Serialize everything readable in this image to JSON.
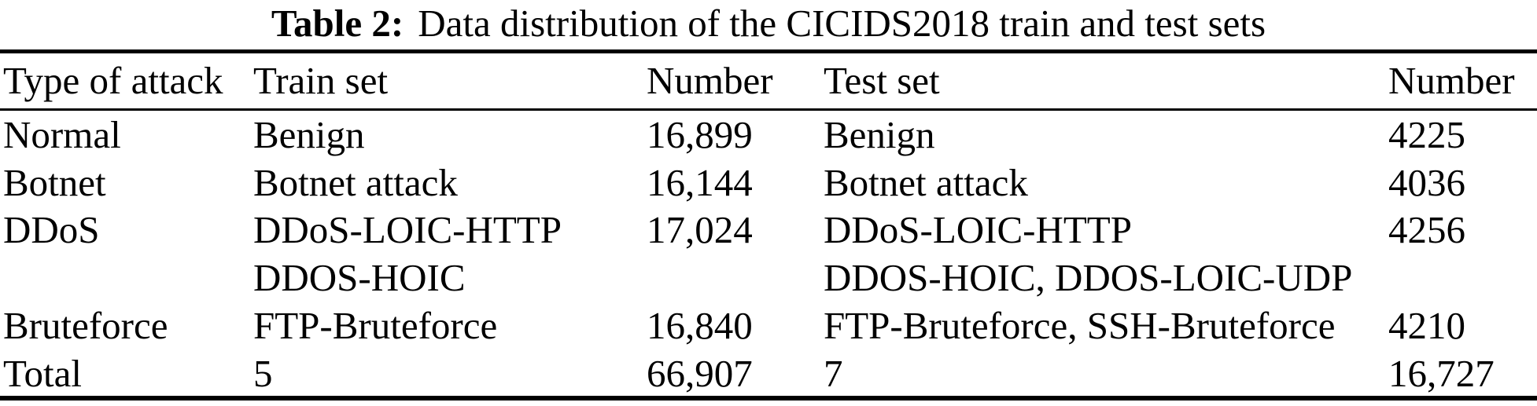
{
  "caption": {
    "label": "Table 2:",
    "text": "Data distribution of the CICIDS2018 train and test sets"
  },
  "columns": [
    "Type of attack",
    "Train set",
    "Number",
    "Test set",
    "Number"
  ],
  "rows": [
    {
      "type": "Normal",
      "train": [
        "Benign"
      ],
      "train_number": "16,899",
      "test": [
        "Benign"
      ],
      "test_number": "4225"
    },
    {
      "type": "Botnet",
      "train": [
        "Botnet attack"
      ],
      "train_number": "16,144",
      "test": [
        "Botnet attack"
      ],
      "test_number": "4036"
    },
    {
      "type": "DDoS",
      "train": [
        "DDoS-LOIC-HTTP",
        "DDOS-HOIC"
      ],
      "train_number": "17,024",
      "test": [
        "DDoS-LOIC-HTTP",
        "DDOS-HOIC, DDOS-LOIC-UDP"
      ],
      "test_number": "4256"
    },
    {
      "type": "Bruteforce",
      "train": [
        "FTP-Bruteforce"
      ],
      "train_number": "16,840",
      "test": [
        "FTP-Bruteforce, SSH-Bruteforce"
      ],
      "test_number": "4210"
    },
    {
      "type": "Total",
      "train": [
        "5"
      ],
      "train_number": "66,907",
      "test": [
        "7"
      ],
      "test_number": "16,727"
    }
  ],
  "colors": {
    "background": "#ffffff",
    "text": "#000000",
    "rule": "#000000"
  }
}
